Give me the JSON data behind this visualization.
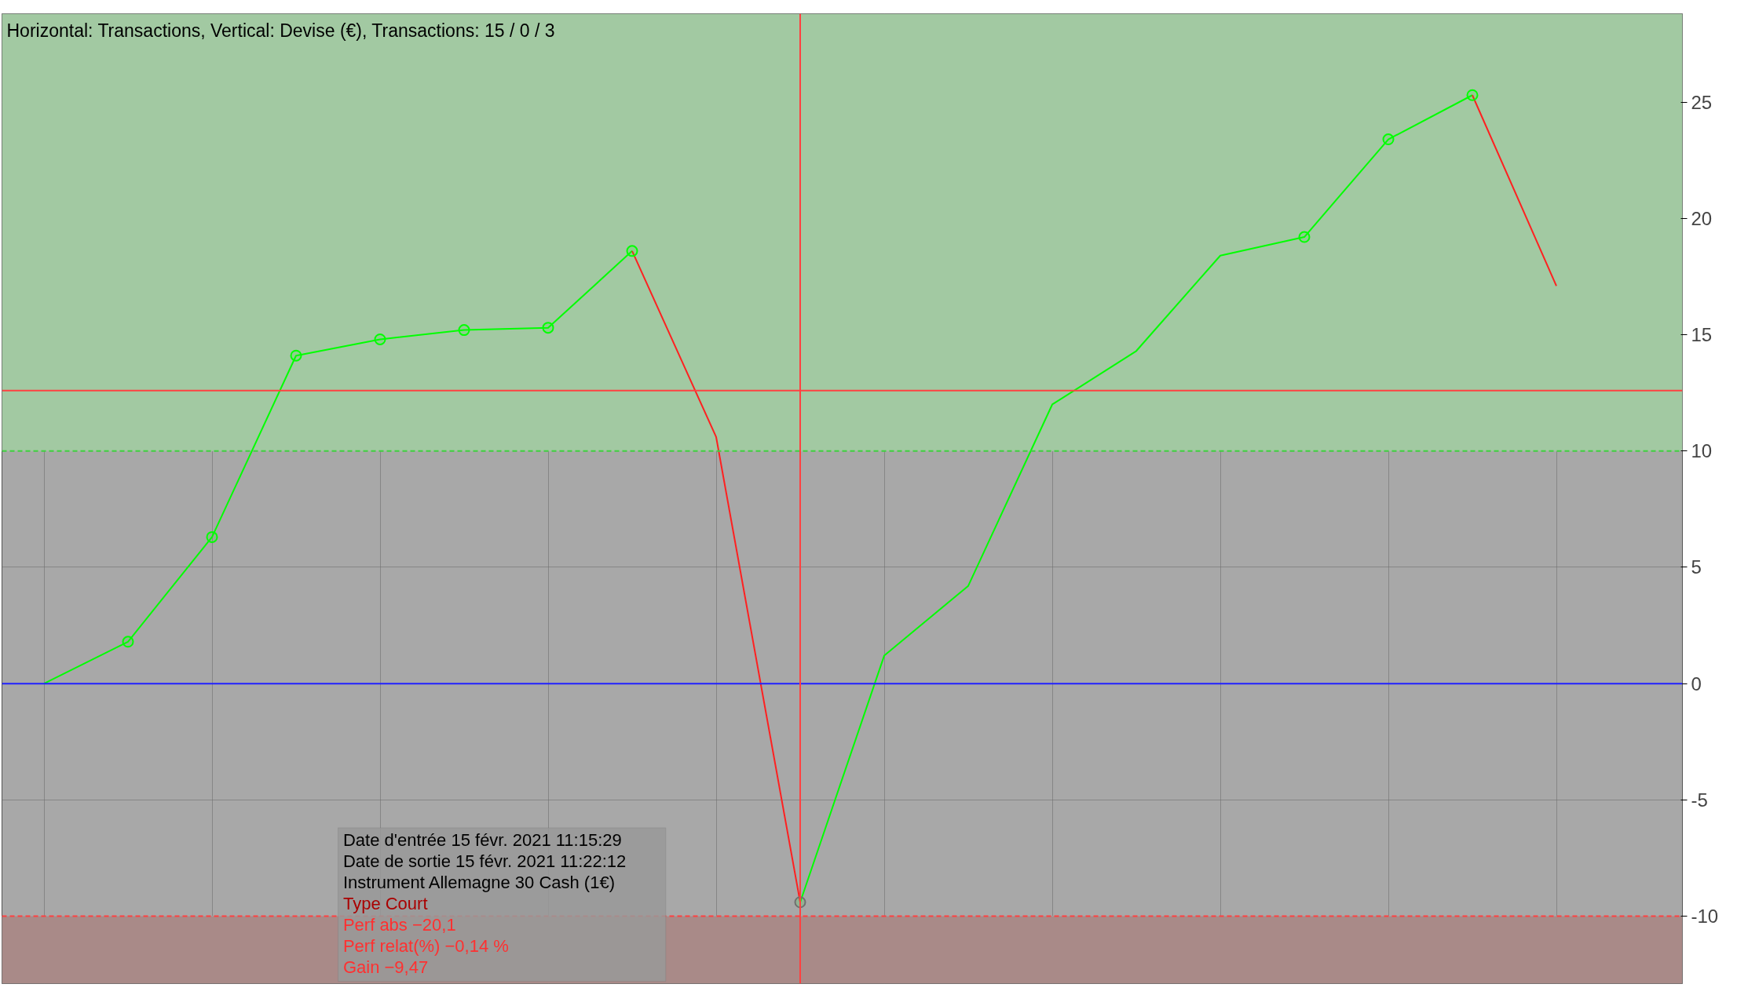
{
  "chart_data": {
    "type": "line",
    "title": "Horizontal: Transactions, Vertical: Devise (€), Transactions: 15 / 0 / 3",
    "categories": [
      null,
      null,
      null,
      null,
      null,
      null,
      null,
      null,
      null,
      null,
      null,
      null,
      null,
      null,
      null,
      null,
      null,
      null,
      null,
      null
    ],
    "series": [
      {
        "color": "#00ff00",
        "values": [
          0,
          1.8,
          6.3,
          14.1,
          14.8,
          15.2,
          15.3,
          18.6,
          null,
          -9.4,
          1.2,
          4.2,
          12.0,
          14.3,
          18.4,
          19.2,
          23.4,
          25.3,
          null,
          null
        ]
      },
      {
        "color": "#ff2020",
        "values": [
          null,
          null,
          null,
          null,
          null,
          null,
          null,
          18.6,
          10.6,
          -9.4,
          null,
          null,
          null,
          null,
          null,
          null,
          null,
          25.3,
          17.1,
          null
        ]
      },
      {
        "type": "scatter",
        "marker": "circle",
        "color": "#00ff00",
        "values": [
          null,
          1.8,
          6.3,
          14.1,
          14.8,
          15.2,
          15.3,
          18.6,
          null,
          -9.4,
          null,
          null,
          null,
          null,
          null,
          19.2,
          23.4,
          25.3,
          null,
          null
        ],
        "colors": [
          null,
          "#00ff00",
          "#00ff00",
          "#00ff00",
          "#00ff00",
          "#00ff00",
          "#00ff00",
          "#00ff00",
          null,
          "#707070",
          null,
          null,
          null,
          null,
          null,
          "#00ff00",
          "#00ff00",
          "#00ff00",
          null,
          null
        ]
      }
    ],
    "ylim": [
      -12.9,
      28.8
    ],
    "yticks": [
      -10,
      -5,
      0,
      5,
      10,
      15,
      20,
      25
    ],
    "tick_labels": "y",
    "grid": true,
    "bands": [
      {
        "axis": "y",
        "from": 10,
        "to": 28.8,
        "color": "#a2c9a2"
      },
      {
        "axis": "y",
        "from": -12.9,
        "to": -10,
        "color": "#a98a88"
      }
    ],
    "ref_lines": [
      {
        "axis": "y",
        "value": 0,
        "color": "#2020ff"
      },
      {
        "axis": "y",
        "value": 12.6,
        "color": "#ff4040"
      },
      {
        "axis": "y",
        "value": 10,
        "color": "#40d040",
        "line_style": "dashed"
      },
      {
        "axis": "y",
        "value": -10,
        "color": "#ff4040",
        "line_style": "dashed"
      }
    ],
    "annotations": [
      "Date d'entrée   15 févr. 2021 11:15:29",
      "Date de sortie   15 févr. 2021 11:22:12",
      "Instrument   Allemagne 30 Cash (1€)",
      "Type   Court",
      "Perf abs   −20,1",
      "Perf relat(%)   −0,14 %",
      "Gain   −9,47"
    ]
  }
}
